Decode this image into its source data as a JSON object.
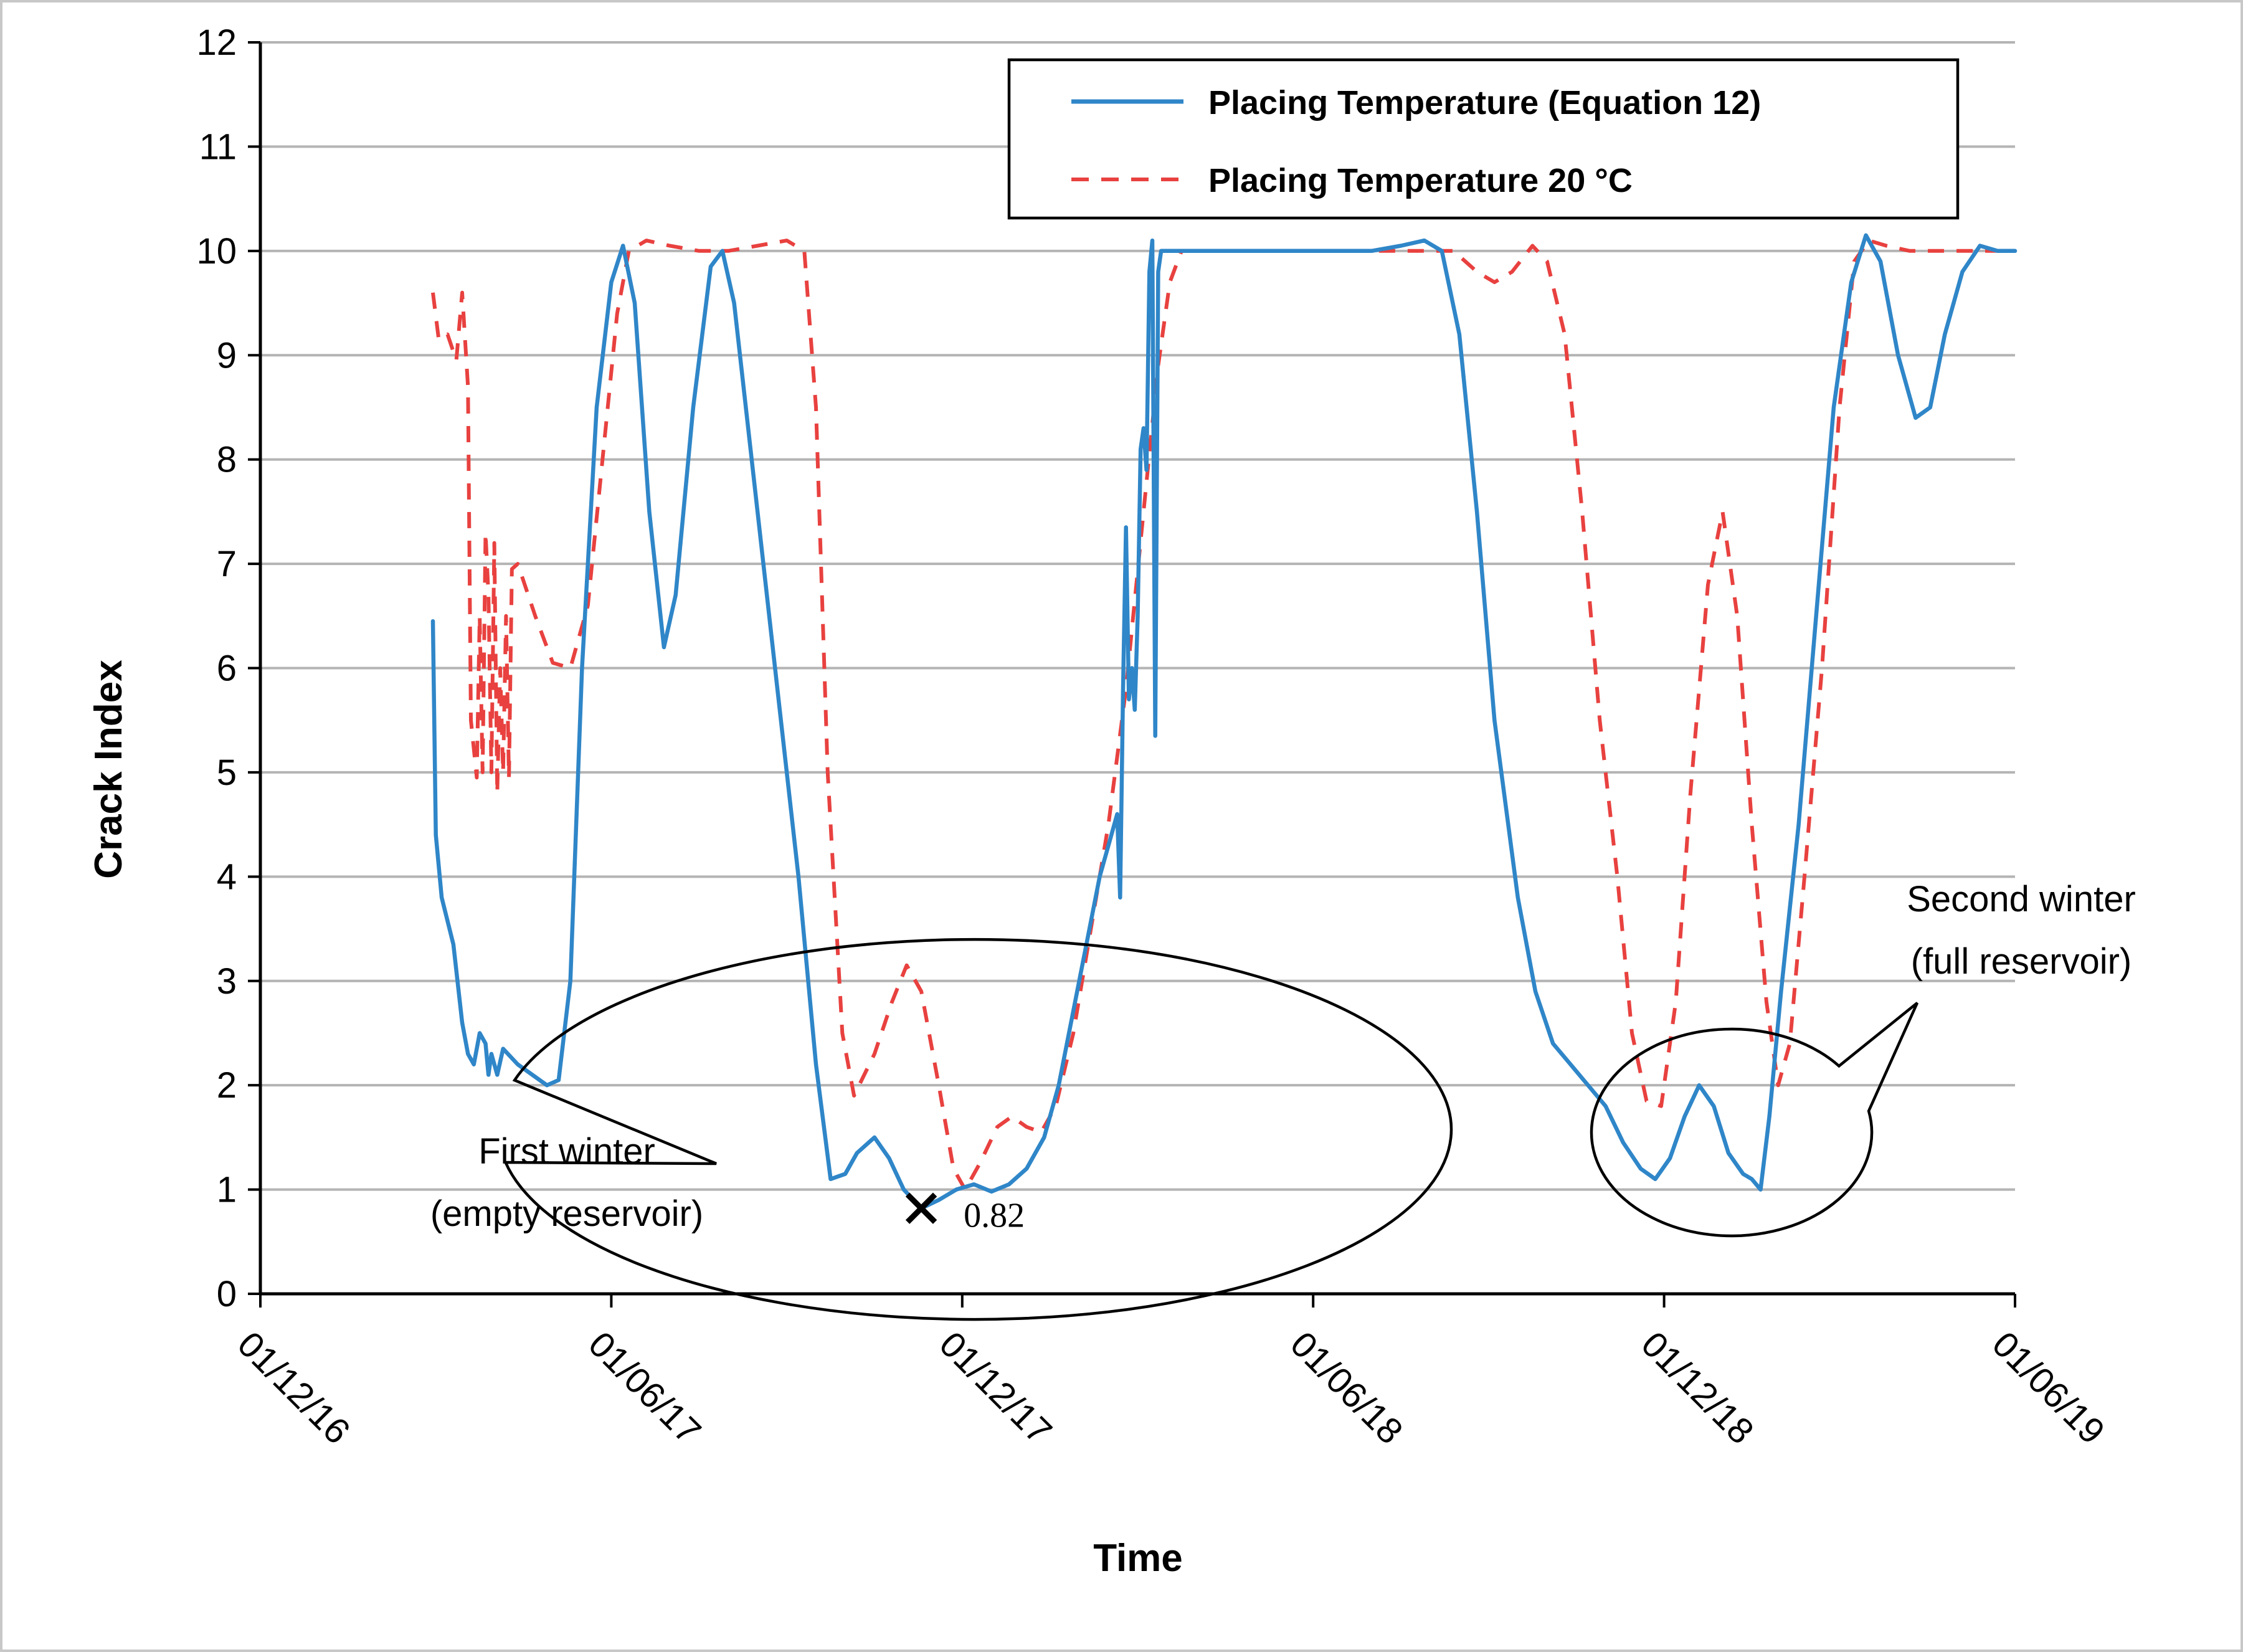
{
  "chart_data": {
    "type": "line",
    "title": "",
    "xlabel": "Time",
    "ylabel": "Crack Index",
    "ylim": [
      0,
      12
    ],
    "yticks": [
      0,
      1,
      2,
      3,
      4,
      5,
      6,
      7,
      8,
      9,
      10,
      11,
      12
    ],
    "xlim_months": [
      0,
      30
    ],
    "xticks": [
      {
        "label": "01/12/16",
        "month": 0
      },
      {
        "label": "01/06/17",
        "month": 6
      },
      {
        "label": "01/12/17",
        "month": 12
      },
      {
        "label": "01/06/18",
        "month": 18
      },
      {
        "label": "01/12/18",
        "month": 24
      },
      {
        "label": "01/06/19",
        "month": 30
      }
    ],
    "grid": "horizontal",
    "legend_position": "top-right",
    "series": [
      {
        "name": "Placing Temperature (Equation 12)",
        "color": "#2f86c8",
        "style": "solid",
        "points": [
          [
            2.95,
            6.45
          ],
          [
            3.0,
            4.4
          ],
          [
            3.1,
            3.8
          ],
          [
            3.3,
            3.35
          ],
          [
            3.45,
            2.6
          ],
          [
            3.55,
            2.3
          ],
          [
            3.65,
            2.2
          ],
          [
            3.75,
            2.5
          ],
          [
            3.85,
            2.4
          ],
          [
            3.9,
            2.1
          ],
          [
            3.95,
            2.3
          ],
          [
            4.05,
            2.1
          ],
          [
            4.15,
            2.35
          ],
          [
            4.4,
            2.2
          ],
          [
            4.9,
            2.0
          ],
          [
            5.1,
            2.05
          ],
          [
            5.3,
            3.0
          ],
          [
            5.5,
            6.0
          ],
          [
            5.75,
            8.5
          ],
          [
            6.0,
            9.7
          ],
          [
            6.2,
            10.05
          ],
          [
            6.4,
            9.5
          ],
          [
            6.65,
            7.5
          ],
          [
            6.9,
            6.2
          ],
          [
            7.1,
            6.7
          ],
          [
            7.4,
            8.5
          ],
          [
            7.7,
            9.85
          ],
          [
            7.9,
            10.0
          ],
          [
            8.1,
            9.5
          ],
          [
            8.4,
            8.0
          ],
          [
            8.8,
            6.0
          ],
          [
            9.2,
            4.0
          ],
          [
            9.5,
            2.2
          ],
          [
            9.75,
            1.1
          ],
          [
            10.0,
            1.15
          ],
          [
            10.2,
            1.35
          ],
          [
            10.5,
            1.5
          ],
          [
            10.75,
            1.3
          ],
          [
            11.0,
            1.0
          ],
          [
            11.3,
            0.82
          ],
          [
            11.6,
            0.9
          ],
          [
            11.9,
            1.0
          ],
          [
            12.2,
            1.05
          ],
          [
            12.5,
            0.98
          ],
          [
            12.8,
            1.05
          ],
          [
            13.1,
            1.2
          ],
          [
            13.4,
            1.5
          ],
          [
            13.65,
            2.0
          ],
          [
            14.0,
            3.0
          ],
          [
            14.35,
            4.0
          ],
          [
            14.65,
            4.6
          ],
          [
            14.7,
            3.8
          ],
          [
            14.75,
            5.8
          ],
          [
            14.8,
            7.35
          ],
          [
            14.85,
            5.7
          ],
          [
            14.9,
            6.0
          ],
          [
            14.95,
            5.6
          ],
          [
            15.0,
            6.5
          ],
          [
            15.05,
            8.1
          ],
          [
            15.1,
            8.3
          ],
          [
            15.15,
            7.9
          ],
          [
            15.2,
            9.8
          ],
          [
            15.25,
            10.1
          ],
          [
            15.3,
            5.35
          ],
          [
            15.35,
            9.8
          ],
          [
            15.4,
            10.0
          ],
          [
            16.0,
            10.0
          ],
          [
            17.5,
            10.0
          ],
          [
            19.0,
            10.0
          ],
          [
            19.5,
            10.05
          ],
          [
            19.9,
            10.1
          ],
          [
            20.2,
            10.0
          ],
          [
            20.5,
            9.2
          ],
          [
            20.8,
            7.5
          ],
          [
            21.1,
            5.5
          ],
          [
            21.5,
            3.8
          ],
          [
            21.8,
            2.9
          ],
          [
            22.1,
            2.4
          ],
          [
            22.4,
            2.2
          ],
          [
            22.7,
            2.0
          ],
          [
            23.0,
            1.8
          ],
          [
            23.3,
            1.45
          ],
          [
            23.6,
            1.2
          ],
          [
            23.85,
            1.1
          ],
          [
            24.1,
            1.3
          ],
          [
            24.35,
            1.7
          ],
          [
            24.6,
            2.0
          ],
          [
            24.85,
            1.8
          ],
          [
            25.1,
            1.35
          ],
          [
            25.35,
            1.15
          ],
          [
            25.5,
            1.1
          ],
          [
            25.65,
            1.0
          ],
          [
            25.8,
            1.7
          ],
          [
            26.0,
            2.9
          ],
          [
            26.3,
            4.5
          ],
          [
            26.6,
            6.5
          ],
          [
            26.9,
            8.5
          ],
          [
            27.2,
            9.7
          ],
          [
            27.45,
            10.15
          ],
          [
            27.7,
            9.9
          ],
          [
            28.0,
            9.0
          ],
          [
            28.3,
            8.4
          ],
          [
            28.55,
            8.5
          ],
          [
            28.8,
            9.2
          ],
          [
            29.1,
            9.8
          ],
          [
            29.4,
            10.05
          ],
          [
            29.7,
            10.0
          ],
          [
            30.0,
            10.0
          ]
        ]
      },
      {
        "name": "Placing Temperature 20 °C",
        "color": "#e8413f",
        "style": "dashed",
        "points": [
          [
            2.95,
            9.6
          ],
          [
            3.05,
            9.15
          ],
          [
            3.2,
            9.2
          ],
          [
            3.35,
            8.95
          ],
          [
            3.45,
            9.6
          ],
          [
            3.55,
            8.7
          ],
          [
            3.6,
            5.5
          ],
          [
            3.7,
            4.95
          ],
          [
            3.75,
            6.5
          ],
          [
            3.8,
            5.0
          ],
          [
            3.85,
            7.3
          ],
          [
            3.9,
            6.7
          ],
          [
            3.95,
            5.0
          ],
          [
            4.0,
            7.2
          ],
          [
            4.05,
            4.8
          ],
          [
            4.1,
            6.0
          ],
          [
            4.15,
            5.0
          ],
          [
            4.2,
            6.5
          ],
          [
            4.25,
            4.95
          ],
          [
            4.3,
            6.95
          ],
          [
            4.4,
            7.0
          ],
          [
            4.7,
            6.5
          ],
          [
            5.0,
            6.05
          ],
          [
            5.3,
            6.0
          ],
          [
            5.6,
            6.6
          ],
          [
            5.85,
            8.0
          ],
          [
            6.1,
            9.4
          ],
          [
            6.3,
            10.0
          ],
          [
            6.6,
            10.1
          ],
          [
            7.0,
            10.05
          ],
          [
            7.5,
            10.0
          ],
          [
            8.0,
            10.0
          ],
          [
            8.5,
            10.05
          ],
          [
            9.0,
            10.1
          ],
          [
            9.3,
            10.0
          ],
          [
            9.5,
            8.5
          ],
          [
            9.7,
            5.0
          ],
          [
            9.95,
            2.5
          ],
          [
            10.15,
            1.9
          ],
          [
            10.5,
            2.3
          ],
          [
            10.8,
            2.8
          ],
          [
            11.05,
            3.15
          ],
          [
            11.3,
            2.9
          ],
          [
            11.6,
            2.0
          ],
          [
            11.85,
            1.2
          ],
          [
            12.05,
            1.0
          ],
          [
            12.3,
            1.25
          ],
          [
            12.6,
            1.6
          ],
          [
            12.85,
            1.7
          ],
          [
            13.1,
            1.6
          ],
          [
            13.35,
            1.55
          ],
          [
            13.6,
            1.8
          ],
          [
            13.9,
            2.5
          ],
          [
            14.2,
            3.5
          ],
          [
            14.5,
            4.5
          ],
          [
            14.8,
            5.8
          ],
          [
            15.1,
            7.5
          ],
          [
            15.35,
            8.9
          ],
          [
            15.55,
            9.7
          ],
          [
            15.75,
            10.0
          ],
          [
            16.5,
            10.0
          ],
          [
            17.5,
            10.0
          ],
          [
            18.5,
            10.0
          ],
          [
            19.5,
            10.0
          ],
          [
            20.0,
            10.0
          ],
          [
            20.4,
            10.0
          ],
          [
            20.8,
            9.8
          ],
          [
            21.1,
            9.7
          ],
          [
            21.4,
            9.8
          ],
          [
            21.75,
            10.05
          ],
          [
            22.0,
            9.9
          ],
          [
            22.3,
            9.2
          ],
          [
            22.6,
            7.5
          ],
          [
            22.9,
            5.5
          ],
          [
            23.2,
            4.0
          ],
          [
            23.45,
            2.5
          ],
          [
            23.7,
            1.85
          ],
          [
            23.95,
            1.8
          ],
          [
            24.2,
            2.8
          ],
          [
            24.45,
            4.8
          ],
          [
            24.75,
            6.8
          ],
          [
            25.0,
            7.5
          ],
          [
            25.25,
            6.5
          ],
          [
            25.5,
            4.5
          ],
          [
            25.75,
            2.8
          ],
          [
            25.95,
            2.0
          ],
          [
            26.15,
            2.4
          ],
          [
            26.4,
            4.0
          ],
          [
            26.7,
            6.0
          ],
          [
            27.0,
            8.5
          ],
          [
            27.25,
            9.9
          ],
          [
            27.5,
            10.1
          ],
          [
            27.8,
            10.05
          ],
          [
            28.2,
            10.0
          ],
          [
            28.7,
            10.0
          ],
          [
            29.2,
            10.0
          ],
          [
            29.6,
            10.0
          ],
          [
            30.0,
            10.0
          ]
        ]
      }
    ],
    "annotations": [
      {
        "text_lines": [
          "First winter",
          "(empty reservoir)"
        ],
        "type": "callout",
        "target": "ellipse around the first-winter minimum"
      },
      {
        "text_lines": [
          "Second winter",
          "(full reservoir)"
        ],
        "type": "callout",
        "target": "ellipse around the second-winter minimum"
      },
      {
        "marker": "×",
        "label": "0.82",
        "month": 11.3,
        "value": 0.82
      }
    ]
  }
}
